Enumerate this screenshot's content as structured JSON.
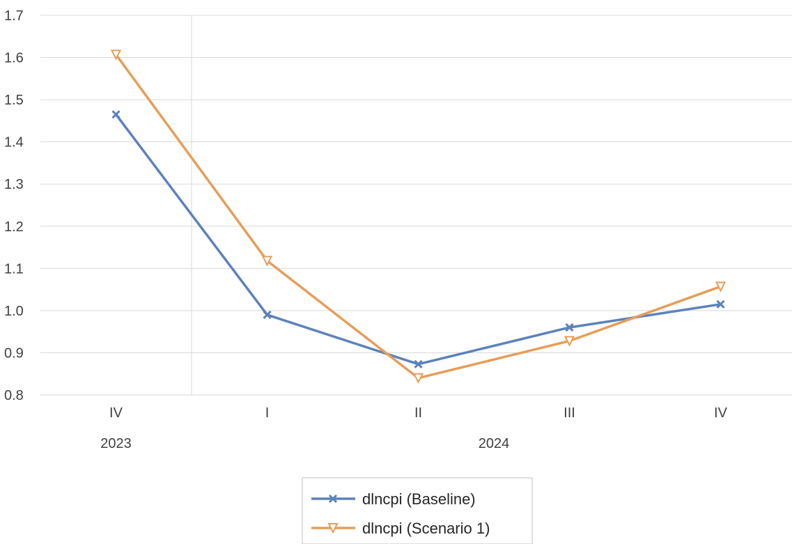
{
  "chart_data": {
    "type": "line",
    "title": "",
    "xlabel": "",
    "ylabel": "",
    "ylim": [
      0.8,
      1.7
    ],
    "yticks": [
      "0.8",
      "0.9",
      "1.0",
      "1.1",
      "1.2",
      "1.3",
      "1.4",
      "1.5",
      "1.6",
      "1.7"
    ],
    "categories": [
      "IV",
      "I",
      "II",
      "III",
      "IV"
    ],
    "groups": [
      {
        "label": "2023",
        "span": 1
      },
      {
        "label": "2024",
        "span": 4
      }
    ],
    "grid": true,
    "legend_position": "bottom",
    "series": [
      {
        "name": "dlncpi (Baseline)",
        "color": "#5b82bd",
        "marker": "x",
        "values": [
          1.465,
          0.99,
          0.873,
          0.96,
          1.015
        ]
      },
      {
        "name": "dlncpi (Scenario 1)",
        "color": "#e69d58",
        "marker": "triangle-down",
        "values": [
          1.607,
          1.118,
          0.84,
          0.928,
          1.057
        ]
      }
    ]
  }
}
